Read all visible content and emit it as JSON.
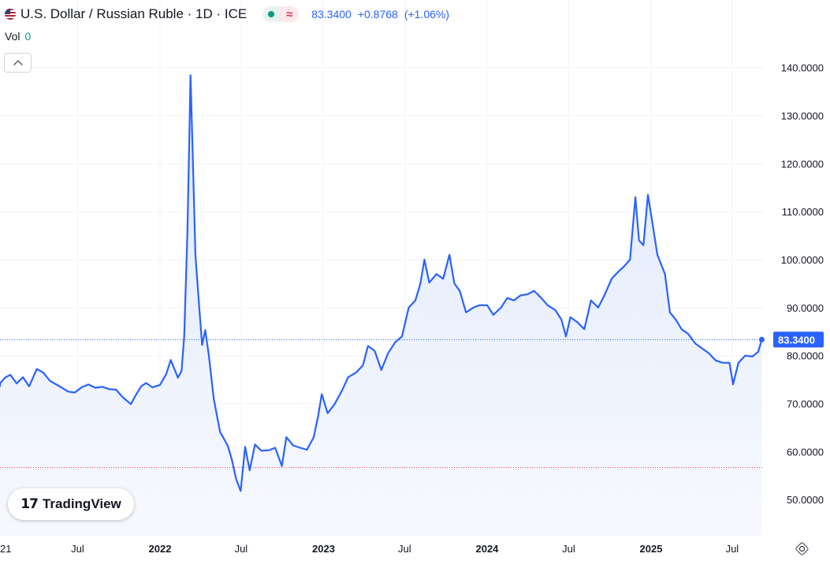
{
  "header": {
    "symbol_title": "U.S. Dollar / Russian Ruble · 1D · ICE",
    "last_price": "83.3400",
    "change": "+0.8768",
    "change_pct": "(+1.06%)",
    "flag_icon": "us-flag-icon",
    "market_status_icon": "market-open-dot-icon",
    "delayed_icon": "delayed-data-icon"
  },
  "volume": {
    "label": "Vol",
    "value": "0"
  },
  "logo": {
    "text": "TradingView",
    "mark": "17",
    "icon": "tradingview-logo-icon"
  },
  "settings": {
    "icon": "settings-gear-icon"
  },
  "colors": {
    "line": "#2962ff",
    "area_top": "#dfe8fb",
    "area_bottom": "#f7f9fe",
    "price_badge": "#2962ff",
    "low_line": "#f23645"
  },
  "chart_data": {
    "type": "area",
    "xlabel": "",
    "ylabel": "",
    "x_ticks": [
      "21",
      "Jul",
      "2022",
      "Jul",
      "2023",
      "Jul",
      "2024",
      "Jul",
      "2025",
      "Jul"
    ],
    "x_tick_dates": [
      "2021-01-01",
      "2021-07-01",
      "2022-01-01",
      "2022-07-01",
      "2023-01-01",
      "2023-07-01",
      "2024-01-01",
      "2024-07-01",
      "2025-01-01",
      "2025-07-01"
    ],
    "y_ticks": [
      "140.0000",
      "130.0000",
      "120.0000",
      "110.0000",
      "100.0000",
      "90.0000",
      "80.0000",
      "70.0000",
      "60.0000",
      "50.0000"
    ],
    "ylim": [
      45.6,
      147.5
    ],
    "last_value_label": "83.3400",
    "reference_line_value": 56.7,
    "grid": true,
    "series": [
      {
        "values": [
          [
            "2020-12-01",
            73.5
          ],
          [
            "2020-12-15",
            74.0
          ],
          [
            "2021-01-01",
            74.2
          ],
          [
            "2021-01-20",
            75.4
          ],
          [
            "2021-02-01",
            76.0
          ],
          [
            "2021-02-15",
            74.2
          ],
          [
            "2021-03-01",
            75.5
          ],
          [
            "2021-03-15",
            73.6
          ],
          [
            "2021-04-01",
            77.2
          ],
          [
            "2021-04-15",
            76.5
          ],
          [
            "2021-05-01",
            74.7
          ],
          [
            "2021-05-20",
            73.7
          ],
          [
            "2021-06-10",
            72.5
          ],
          [
            "2021-06-25",
            72.3
          ],
          [
            "2021-07-10",
            73.4
          ],
          [
            "2021-07-25",
            74.0
          ],
          [
            "2021-08-10",
            73.3
          ],
          [
            "2021-08-25",
            73.5
          ],
          [
            "2021-09-10",
            73.0
          ],
          [
            "2021-09-25",
            72.9
          ],
          [
            "2021-10-10",
            71.3
          ],
          [
            "2021-10-28",
            69.9
          ],
          [
            "2021-11-05",
            71.3
          ],
          [
            "2021-11-20",
            73.6
          ],
          [
            "2021-12-01",
            74.3
          ],
          [
            "2021-12-15",
            73.4
          ],
          [
            "2022-01-01",
            73.9
          ],
          [
            "2022-01-15",
            76.2
          ],
          [
            "2022-01-25",
            79.1
          ],
          [
            "2022-02-10",
            75.4
          ],
          [
            "2022-02-18",
            76.8
          ],
          [
            "2022-02-24",
            84.0
          ],
          [
            "2022-03-03",
            105.3
          ],
          [
            "2022-03-07",
            123.0
          ],
          [
            "2022-03-10",
            138.4
          ],
          [
            "2022-03-15",
            122.0
          ],
          [
            "2022-03-21",
            101.0
          ],
          [
            "2022-03-28",
            92.0
          ],
          [
            "2022-04-05",
            82.2
          ],
          [
            "2022-04-12",
            85.3
          ],
          [
            "2022-04-20",
            80.0
          ],
          [
            "2022-05-01",
            71.0
          ],
          [
            "2022-05-15",
            64.1
          ],
          [
            "2022-06-01",
            61.3
          ],
          [
            "2022-06-10",
            58.5
          ],
          [
            "2022-06-20",
            54.3
          ],
          [
            "2022-06-30",
            51.8
          ],
          [
            "2022-07-10",
            61.0
          ],
          [
            "2022-07-20",
            56.1
          ],
          [
            "2022-08-01",
            61.5
          ],
          [
            "2022-08-15",
            60.2
          ],
          [
            "2022-09-01",
            60.3
          ],
          [
            "2022-09-15",
            60.8
          ],
          [
            "2022-09-30",
            57.0
          ],
          [
            "2022-10-10",
            63.0
          ],
          [
            "2022-10-25",
            61.3
          ],
          [
            "2022-11-10",
            60.8
          ],
          [
            "2022-11-25",
            60.4
          ],
          [
            "2022-12-10",
            63.0
          ],
          [
            "2022-12-20",
            67.5
          ],
          [
            "2022-12-28",
            72.0
          ],
          [
            "2023-01-10",
            68.0
          ],
          [
            "2023-01-25",
            69.8
          ],
          [
            "2023-02-10",
            72.5
          ],
          [
            "2023-02-25",
            75.5
          ],
          [
            "2023-03-15",
            76.5
          ],
          [
            "2023-03-30",
            78.0
          ],
          [
            "2023-04-10",
            82.0
          ],
          [
            "2023-04-25",
            81.0
          ],
          [
            "2023-05-10",
            77.0
          ],
          [
            "2023-05-25",
            80.5
          ],
          [
            "2023-06-10",
            82.8
          ],
          [
            "2023-06-25",
            84.0
          ],
          [
            "2023-07-10",
            90.0
          ],
          [
            "2023-07-25",
            91.5
          ],
          [
            "2023-08-05",
            95.0
          ],
          [
            "2023-08-14",
            100.0
          ],
          [
            "2023-08-25",
            95.2
          ],
          [
            "2023-09-10",
            97.0
          ],
          [
            "2023-09-25",
            96.0
          ],
          [
            "2023-10-09",
            101.0
          ],
          [
            "2023-10-20",
            95.0
          ],
          [
            "2023-11-01",
            93.5
          ],
          [
            "2023-11-15",
            89.0
          ],
          [
            "2023-12-01",
            90.0
          ],
          [
            "2023-12-15",
            90.5
          ],
          [
            "2024-01-01",
            90.5
          ],
          [
            "2024-01-15",
            88.5
          ],
          [
            "2024-02-01",
            90.0
          ],
          [
            "2024-02-15",
            92.0
          ],
          [
            "2024-03-01",
            91.5
          ],
          [
            "2024-03-15",
            92.5
          ],
          [
            "2024-04-01",
            92.8
          ],
          [
            "2024-04-15",
            93.5
          ],
          [
            "2024-05-01",
            92.0
          ],
          [
            "2024-05-15",
            90.5
          ],
          [
            "2024-06-01",
            89.5
          ],
          [
            "2024-06-15",
            87.5
          ],
          [
            "2024-06-25",
            84.0
          ],
          [
            "2024-07-05",
            88.0
          ],
          [
            "2024-07-20",
            87.0
          ],
          [
            "2024-08-05",
            85.5
          ],
          [
            "2024-08-20",
            91.5
          ],
          [
            "2024-09-05",
            90.0
          ],
          [
            "2024-09-20",
            92.8
          ],
          [
            "2024-10-05",
            96.0
          ],
          [
            "2024-10-20",
            97.5
          ],
          [
            "2024-11-01",
            98.5
          ],
          [
            "2024-11-15",
            100.0
          ],
          [
            "2024-11-27",
            113.0
          ],
          [
            "2024-12-05",
            104.0
          ],
          [
            "2024-12-15",
            103.0
          ],
          [
            "2024-12-25",
            113.5
          ],
          [
            "2025-01-05",
            107.0
          ],
          [
            "2025-01-15",
            101.0
          ],
          [
            "2025-02-01",
            97.0
          ],
          [
            "2025-02-12",
            89.0
          ],
          [
            "2025-02-25",
            87.5
          ],
          [
            "2025-03-10",
            85.5
          ],
          [
            "2025-03-25",
            84.5
          ],
          [
            "2025-04-10",
            82.5
          ],
          [
            "2025-04-25",
            81.5
          ],
          [
            "2025-05-10",
            80.5
          ],
          [
            "2025-05-25",
            79.0
          ],
          [
            "2025-06-10",
            78.5
          ],
          [
            "2025-06-25",
            78.5
          ],
          [
            "2025-07-03",
            74.0
          ],
          [
            "2025-07-15",
            78.5
          ],
          [
            "2025-07-30",
            80.0
          ],
          [
            "2025-08-15",
            79.8
          ],
          [
            "2025-08-28",
            80.8
          ],
          [
            "2025-09-05",
            83.34
          ]
        ]
      }
    ]
  }
}
